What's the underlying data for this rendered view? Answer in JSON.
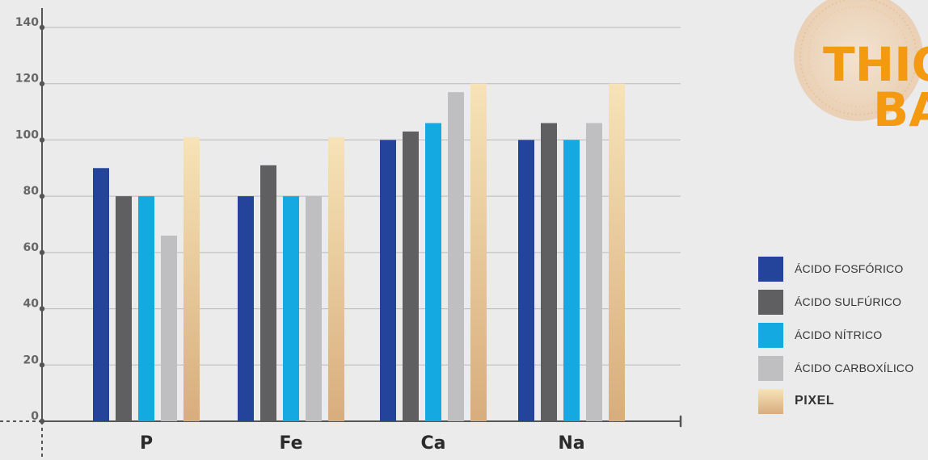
{
  "chart_data": {
    "type": "bar",
    "categories": [
      "P",
      "Fe",
      "Ca",
      "Na"
    ],
    "series": [
      {
        "name": "ÁCIDO FOSFÓRICO",
        "color": "#23449a",
        "values": [
          90,
          80,
          100,
          100
        ]
      },
      {
        "name": "ÁCIDO SULFÚRICO",
        "color": "#5f5f62",
        "values": [
          80,
          91,
          103,
          106
        ]
      },
      {
        "name": "ÁCIDO NÍTRICO",
        "color": "#14a9e0",
        "values": [
          80,
          80,
          106,
          100
        ]
      },
      {
        "name": "ÁCIDO CARBOXÍLICO",
        "color": "#bfbfc1",
        "values": [
          66,
          80,
          117,
          106
        ]
      },
      {
        "name": "PIXEL",
        "color": "#e2bd8a",
        "values": [
          101,
          101,
          120,
          120
        ]
      }
    ],
    "ylim": [
      0,
      140
    ],
    "yticks": [
      0,
      20,
      40,
      60,
      80,
      100,
      120,
      140
    ],
    "grid": true,
    "legend_position": "right"
  },
  "logo": {
    "text_line1": "THIO",
    "text_line2": "BA"
  }
}
